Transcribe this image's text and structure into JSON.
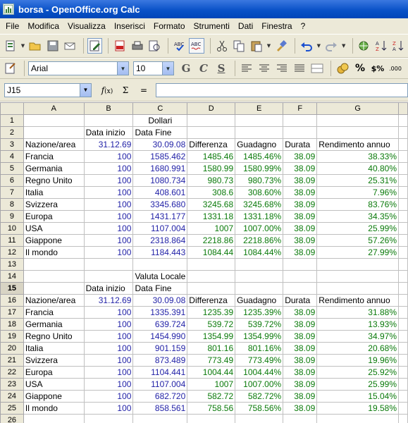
{
  "window": {
    "title": "borsa - OpenOffice.org Calc"
  },
  "menubar": [
    "File",
    "Modifica",
    "Visualizza",
    "Inserisci",
    "Formato",
    "Strumenti",
    "Dati",
    "Finestra",
    "?"
  ],
  "format_toolbar": {
    "font_name": "Arial",
    "font_size": "10"
  },
  "formula_bar": {
    "cell_ref": "J15",
    "function_label": "Σ",
    "equals_label": "=",
    "formula": ""
  },
  "icons": {
    "standard": [
      "new-document-icon",
      "open-folder-icon",
      "save-icon",
      "email-icon",
      "edit-file-icon",
      "export-pdf-icon",
      "print-icon",
      "page-preview-icon",
      "spellcheck-icon",
      "autospellcheck-icon",
      "cut-icon",
      "copy-icon",
      "paste-icon",
      "format-paintbrush-icon",
      "undo-icon",
      "redo-icon",
      "navigator-icon",
      "sort-ascending-icon",
      "sort-descending-icon"
    ],
    "format": [
      "styles-icon",
      "bold-icon",
      "italic-icon",
      "underline-icon",
      "align-left-icon",
      "align-center-icon",
      "align-right-icon",
      "justify-icon",
      "merge-cells-icon",
      "currency-icon",
      "percent-icon",
      "standard-format-icon",
      "add-decimal-icon"
    ]
  },
  "sheet": {
    "columns": [
      "A",
      "B",
      "C",
      "D",
      "E",
      "F",
      "G"
    ],
    "selected_row": "15",
    "rows": [
      {
        "n": "1",
        "a": "",
        "b": "",
        "c": "Dollari",
        "d": "",
        "e": "",
        "f": "",
        "g": ""
      },
      {
        "n": "2",
        "a": "",
        "b": "Data inizio",
        "c": "Data Fine",
        "d": "",
        "e": "",
        "f": "",
        "g": ""
      },
      {
        "n": "3",
        "a": "Nazione/area",
        "b": "31.12.69",
        "c": "30.09.08",
        "d": "Differenza",
        "e": "Guadagno",
        "f": "Durata",
        "g": "Rendimento annuo"
      },
      {
        "n": "4",
        "a": "Francia",
        "b": "100",
        "c": "1585.462",
        "d": "1485.46",
        "e": "1485.46%",
        "f": "38.09",
        "g": "38.33%"
      },
      {
        "n": "5",
        "a": "Germania",
        "b": "100",
        "c": "1680.991",
        "d": "1580.99",
        "e": "1580.99%",
        "f": "38.09",
        "g": "40.80%"
      },
      {
        "n": "6",
        "a": "Regno Unito",
        "b": "100",
        "c": "1080.734",
        "d": "980.73",
        "e": "980.73%",
        "f": "38.09",
        "g": "25.31%"
      },
      {
        "n": "7",
        "a": "Italia",
        "b": "100",
        "c": "408.601",
        "d": "308.6",
        "e": "308.60%",
        "f": "38.09",
        "g": "7.96%"
      },
      {
        "n": "8",
        "a": "Svizzera",
        "b": "100",
        "c": "3345.680",
        "d": "3245.68",
        "e": "3245.68%",
        "f": "38.09",
        "g": "83.76%"
      },
      {
        "n": "9",
        "a": "Europa",
        "b": "100",
        "c": "1431.177",
        "d": "1331.18",
        "e": "1331.18%",
        "f": "38.09",
        "g": "34.35%"
      },
      {
        "n": "10",
        "a": "USA",
        "b": "100",
        "c": "1107.004",
        "d": "1007",
        "e": "1007.00%",
        "f": "38.09",
        "g": "25.99%"
      },
      {
        "n": "11",
        "a": "Giappone",
        "b": "100",
        "c": "2318.864",
        "d": "2218.86",
        "e": "2218.86%",
        "f": "38.09",
        "g": "57.26%"
      },
      {
        "n": "12",
        "a": "Il mondo",
        "b": "100",
        "c": "1184.443",
        "d": "1084.44",
        "e": "1084.44%",
        "f": "38.09",
        "g": "27.99%"
      },
      {
        "n": "13",
        "a": "",
        "b": "",
        "c": "",
        "d": "",
        "e": "",
        "f": "",
        "g": ""
      },
      {
        "n": "14",
        "a": "",
        "b": "",
        "c": "Valuta Locale",
        "d": "",
        "e": "",
        "f": "",
        "g": ""
      },
      {
        "n": "15",
        "a": "",
        "b": "Data inizio",
        "c": "Data Fine",
        "d": "",
        "e": "",
        "f": "",
        "g": ""
      },
      {
        "n": "16",
        "a": "Nazione/area",
        "b": "31.12.69",
        "c": "30.09.08",
        "d": "Differenza",
        "e": "Guadagno",
        "f": "Durata",
        "g": "Rendimento annuo"
      },
      {
        "n": "17",
        "a": "Francia",
        "b": "100",
        "c": "1335.391",
        "d": "1235.39",
        "e": "1235.39%",
        "f": "38.09",
        "g": "31.88%"
      },
      {
        "n": "18",
        "a": "Germania",
        "b": "100",
        "c": "639.724",
        "d": "539.72",
        "e": "539.72%",
        "f": "38.09",
        "g": "13.93%"
      },
      {
        "n": "19",
        "a": "Regno Unito",
        "b": "100",
        "c": "1454.990",
        "d": "1354.99",
        "e": "1354.99%",
        "f": "38.09",
        "g": "34.97%"
      },
      {
        "n": "20",
        "a": "Italia",
        "b": "100",
        "c": "901.159",
        "d": "801.16",
        "e": "801.16%",
        "f": "38.09",
        "g": "20.68%"
      },
      {
        "n": "21",
        "a": "Svizzera",
        "b": "100",
        "c": "873.489",
        "d": "773.49",
        "e": "773.49%",
        "f": "38.09",
        "g": "19.96%"
      },
      {
        "n": "22",
        "a": "Europa",
        "b": "100",
        "c": "1104.441",
        "d": "1004.44",
        "e": "1004.44%",
        "f": "38.09",
        "g": "25.92%"
      },
      {
        "n": "23",
        "a": "USA",
        "b": "100",
        "c": "1107.004",
        "d": "1007",
        "e": "1007.00%",
        "f": "38.09",
        "g": "25.99%"
      },
      {
        "n": "24",
        "a": "Giappone",
        "b": "100",
        "c": "682.720",
        "d": "582.72",
        "e": "582.72%",
        "f": "38.09",
        "g": "15.04%"
      },
      {
        "n": "25",
        "a": "Il mondo",
        "b": "100",
        "c": "858.561",
        "d": "758.56",
        "e": "758.56%",
        "f": "38.09",
        "g": "19.58%"
      },
      {
        "n": "26",
        "a": "",
        "b": "",
        "c": "",
        "d": "",
        "e": "",
        "f": "",
        "g": ""
      }
    ]
  },
  "colors": {
    "value_blue": "#1f1fa6",
    "value_green": "#0a7a0a",
    "titlebar": "#0a52c8"
  }
}
